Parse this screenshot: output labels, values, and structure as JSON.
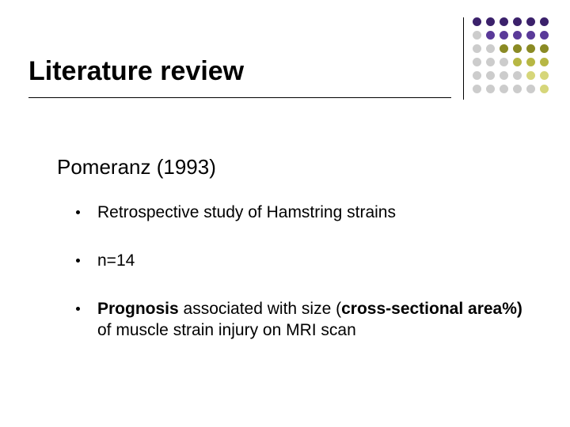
{
  "title": "Literature review",
  "subheading": "Pomeranz (1993)",
  "bullets": [
    {
      "plain": "Retrospective study of Hamstring strains"
    },
    {
      "plain": "n=14"
    },
    {
      "b1": "Prognosis",
      "mid": " associated with size (",
      "b2": "cross-sectional area%)",
      "tail": " of muscle strain injury on MRI scan"
    }
  ],
  "dot_colors": {
    "purple_dark": "#3b216b",
    "purple_mid": "#5a3a99",
    "olive_dark": "#8a8a24",
    "olive_mid": "#b7b744",
    "olive_lite": "#d6d67a",
    "grey": "#cccccc"
  },
  "dot_grid": [
    [
      "purple_dark",
      "purple_dark",
      "purple_dark",
      "purple_dark",
      "purple_dark",
      "purple_dark"
    ],
    [
      "grey",
      "purple_mid",
      "purple_mid",
      "purple_mid",
      "purple_mid",
      "purple_mid"
    ],
    [
      "grey",
      "grey",
      "olive_dark",
      "olive_dark",
      "olive_dark",
      "olive_dark"
    ],
    [
      "grey",
      "grey",
      "grey",
      "olive_mid",
      "olive_mid",
      "olive_mid"
    ],
    [
      "grey",
      "grey",
      "grey",
      "grey",
      "olive_lite",
      "olive_lite"
    ],
    [
      "grey",
      "grey",
      "grey",
      "grey",
      "grey",
      "olive_lite"
    ]
  ]
}
